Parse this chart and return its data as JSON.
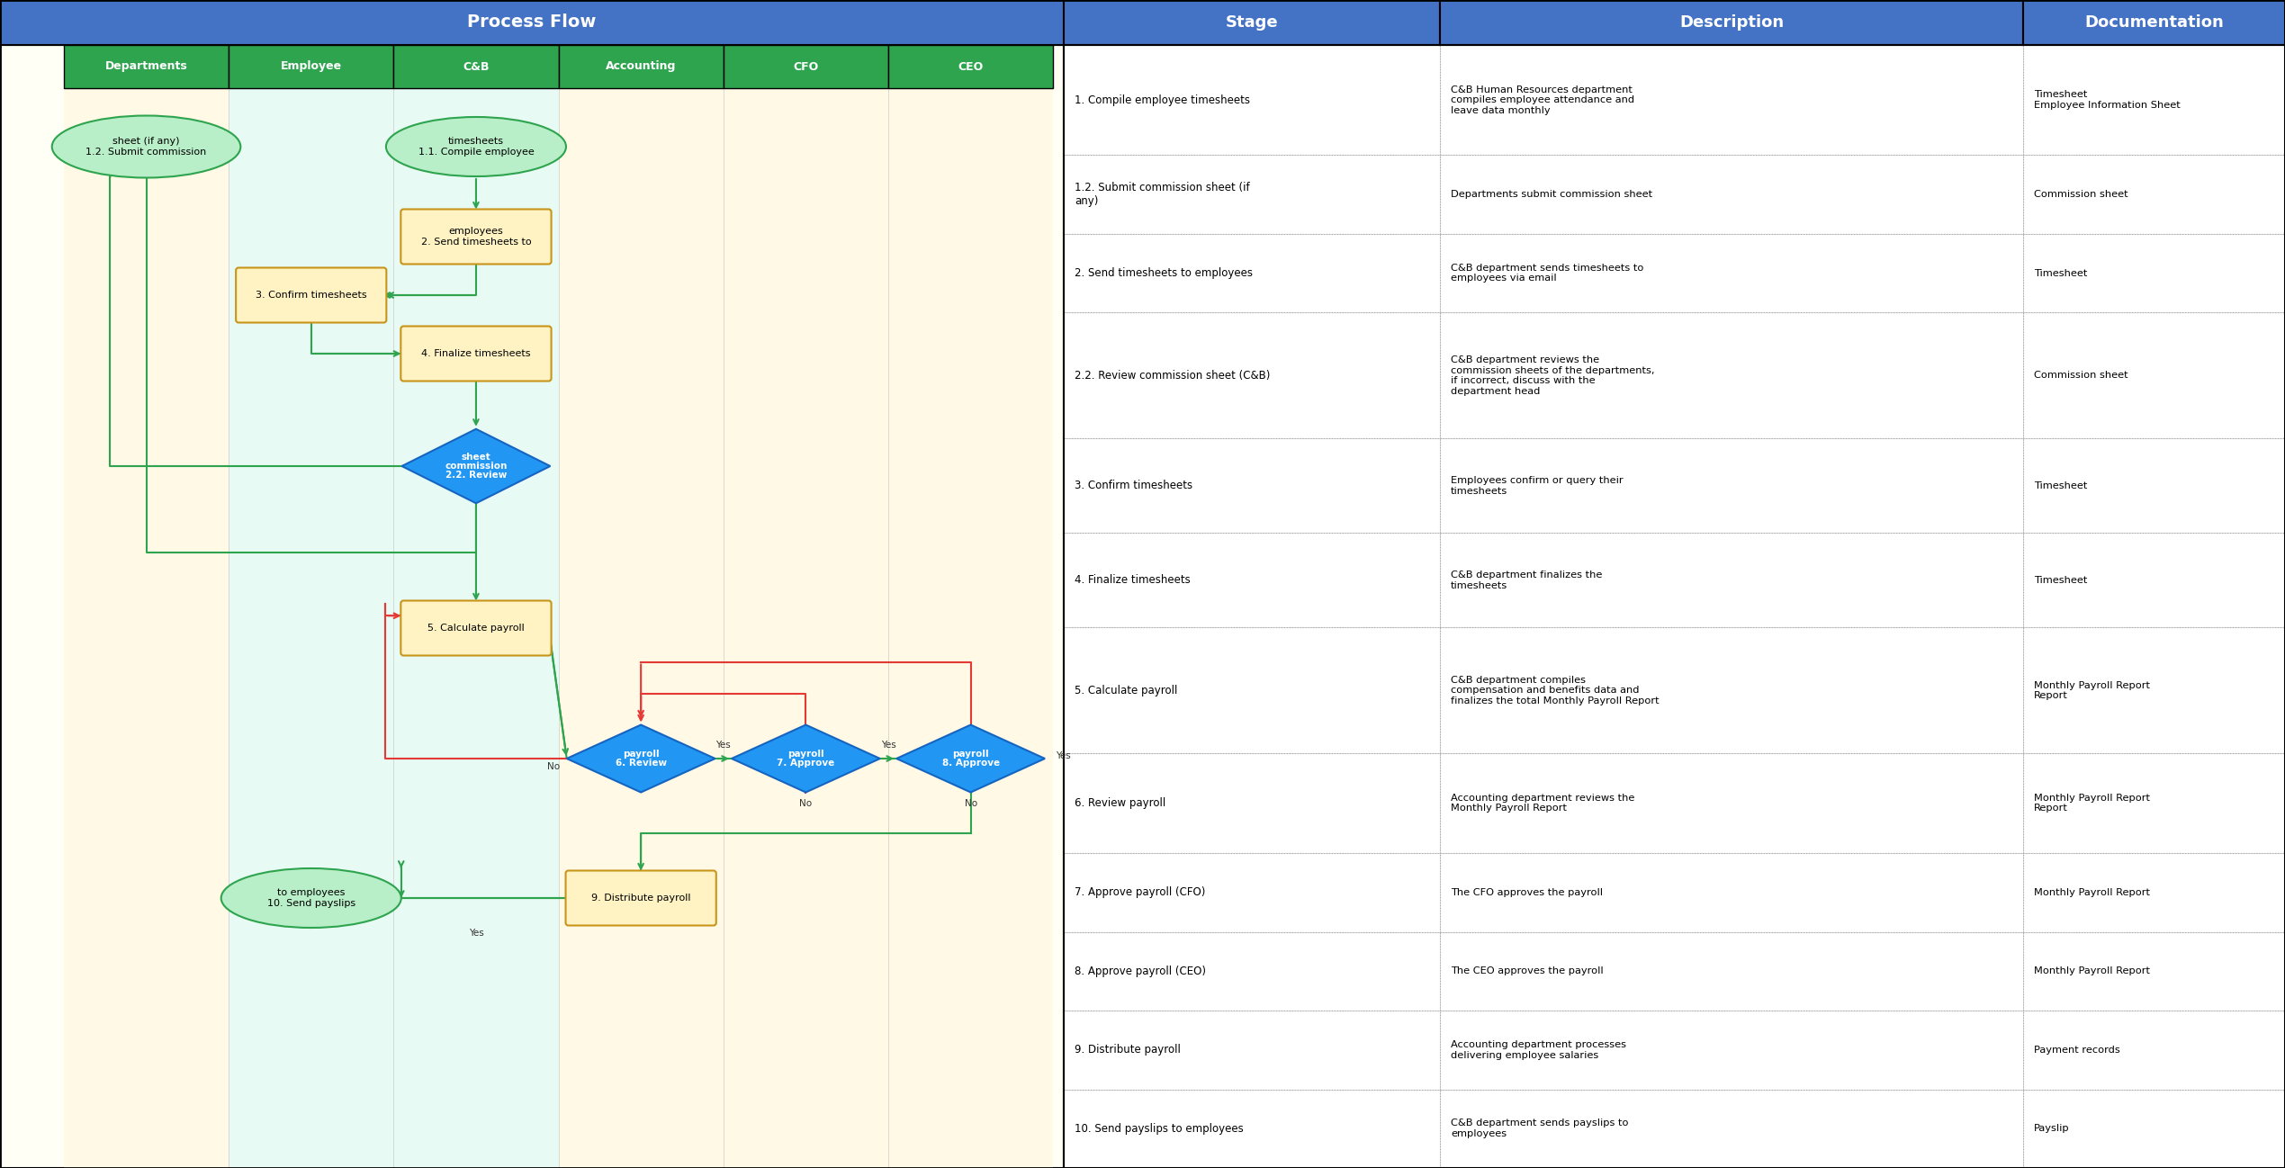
{
  "header_bg": "#4472C4",
  "header_text_color": "#FFFFFF",
  "border_color": "#1A1A1A",
  "rows": [
    {
      "stage": "1. Compile employee timesheets",
      "description": "C&B Human Resources department\ncompiles employee attendance and\nleave data monthly",
      "documentation": "Timesheet\nEmployee Information Sheet",
      "bg": "#FFFFFF"
    },
    {
      "stage": "1.2. Submit commission sheet (if\nany)",
      "description": "Departments submit commission sheet",
      "documentation": "Commission sheet",
      "bg": "#FFFFFF"
    },
    {
      "stage": "2. Send timesheets to employees",
      "description": "C&B department sends timesheets to\nemployees via email",
      "documentation": "Timesheet",
      "bg": "#FFFFFF"
    },
    {
      "stage": "2.2. Review commission sheet (C&B)",
      "description": "C&B department reviews the\ncommission sheets of the departments,\nif incorrect, discuss with the\ndepartment head",
      "documentation": "Commission sheet",
      "bg": "#FFFFFF"
    },
    {
      "stage": "3. Confirm timesheets",
      "description": "Employees confirm or query their\ntimesheets",
      "documentation": "Timesheet",
      "bg": "#FFFFFF"
    },
    {
      "stage": "4. Finalize timesheets",
      "description": "C&B department finalizes the\ntimesheets",
      "documentation": "Timesheet",
      "bg": "#FFFFFF"
    },
    {
      "stage": "5. Calculate payroll",
      "description": "C&B department compiles\ncompensation and benefits data and\nfinalizes the total Monthly Payroll Report",
      "documentation": "Monthly Payroll Report\nReport",
      "bg": "#FFFFFF"
    },
    {
      "stage": "6. Review payroll",
      "description": "Accounting department reviews the\nMonthly Payroll Report",
      "documentation": "Monthly Payroll Report\nReport",
      "bg": "#FFFFFF"
    },
    {
      "stage": "7. Approve payroll (CFO)",
      "description": "The CFO approves the payroll",
      "documentation": "Monthly Payroll Report",
      "bg": "#FFFFFF"
    },
    {
      "stage": "8. Approve payroll (CEO)",
      "description": "The CEO approves the payroll",
      "documentation": "Monthly Payroll Report",
      "bg": "#FFFFFF"
    },
    {
      "stage": "9. Distribute payroll",
      "description": "Accounting department processes\ndelivering employee salaries",
      "documentation": "Payment records",
      "bg": "#FFFFFF"
    },
    {
      "stage": "10. Send payslips to employees",
      "description": "C&B department sends payslips to\nemployees",
      "documentation": "Payslip",
      "bg": "#FFFFFF"
    }
  ],
  "lane_labels": [
    "Departments",
    "Employee",
    "C&B",
    "Accounting",
    "CFO",
    "CEO"
  ],
  "lane_color": "#2EA44F",
  "dept_bg": "#FFF9E6",
  "emp_bg": "#E8FAF0",
  "cb_bg": "#E8FAF0",
  "acc_bg": "#FFFDE6",
  "cfo_bg": "#FFFDE6",
  "ceo_bg": "#FFFDE6",
  "process_box_fc": "#FFF3C4",
  "process_box_ec": "#C8941A",
  "diamond_fc": "#2196F3",
  "diamond_ec": "#1565C0",
  "oval_fc": "#B8EFC8",
  "oval_ec": "#2EA44F",
  "arrow_green": "#2EA44F",
  "arrow_red": "#E53935"
}
